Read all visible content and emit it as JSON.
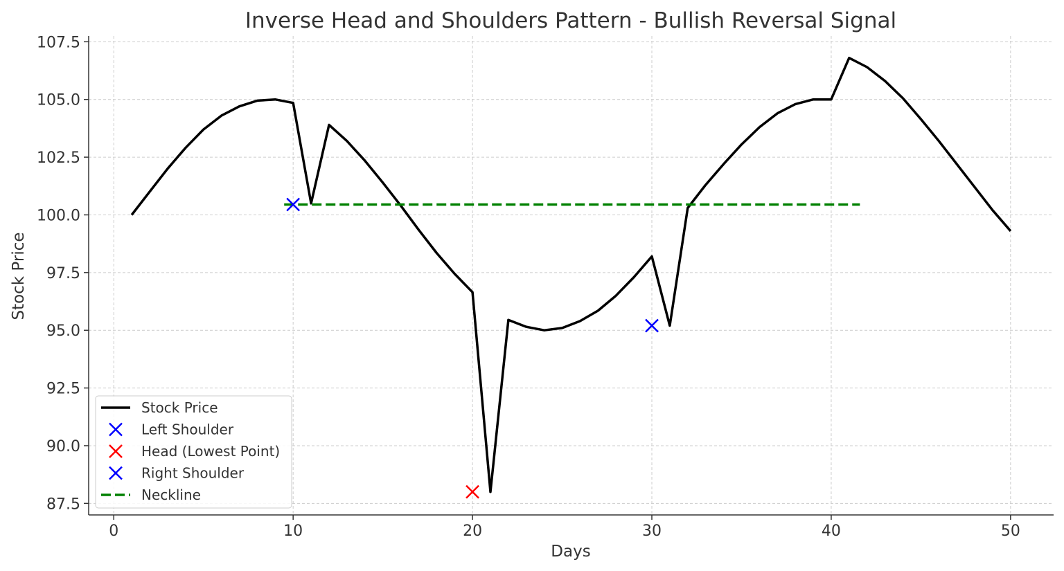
{
  "chart_data": {
    "type": "line",
    "title": "Inverse Head and Shoulders Pattern - Bullish Reversal Signal",
    "xlabel": "Days",
    "ylabel": "Stock Price",
    "xlim": [
      -1.4,
      52.4
    ],
    "ylim": [
      87.0,
      107.75
    ],
    "xticks": [
      0,
      10,
      20,
      30,
      40,
      50
    ],
    "yticks": [
      87.5,
      90.0,
      92.5,
      95.0,
      97.5,
      100.0,
      102.5,
      105.0,
      107.5
    ],
    "grid": true,
    "legend_position": "lower-left",
    "series": [
      {
        "name": "Stock Price",
        "kind": "line",
        "color": "#000000",
        "x": [
          1,
          2,
          3,
          4,
          5,
          6,
          7,
          8,
          9,
          10,
          11,
          12,
          13,
          14,
          15,
          16,
          17,
          18,
          19,
          20,
          21,
          22,
          23,
          24,
          25,
          26,
          27,
          28,
          29,
          30,
          31,
          32,
          33,
          34,
          35,
          36,
          37,
          38,
          39,
          40,
          41,
          42,
          43,
          44,
          45,
          46,
          47,
          48,
          49,
          50
        ],
        "values": [
          100.0,
          101.0,
          102.0,
          102.9,
          103.7,
          104.3,
          104.7,
          104.95,
          105.0,
          104.85,
          100.5,
          103.9,
          103.2,
          102.35,
          101.4,
          100.4,
          99.35,
          98.35,
          97.45,
          96.65,
          88.0,
          95.45,
          95.15,
          95.0,
          95.1,
          95.4,
          95.85,
          96.5,
          97.3,
          98.2,
          95.2,
          100.3,
          101.3,
          102.2,
          103.05,
          103.8,
          104.4,
          104.8,
          105.0,
          105.0,
          106.8,
          106.4,
          105.8,
          105.05,
          104.15,
          103.2,
          102.2,
          101.2,
          100.2,
          99.3
        ]
      },
      {
        "name": "Left Shoulder",
        "kind": "marker",
        "color": "#0000ff",
        "x": [
          10
        ],
        "values": [
          100.45
        ]
      },
      {
        "name": "Head (Lowest Point)",
        "kind": "marker",
        "color": "#ff0000",
        "x": [
          20
        ],
        "values": [
          88.0
        ]
      },
      {
        "name": "Right Shoulder",
        "kind": "marker",
        "color": "#0000ff",
        "x": [
          30
        ],
        "values": [
          95.2
        ]
      },
      {
        "name": "Neckline",
        "kind": "dashed-line",
        "color": "#008000",
        "x": [
          9.5,
          41.6
        ],
        "values": [
          100.45,
          100.45
        ]
      }
    ]
  }
}
